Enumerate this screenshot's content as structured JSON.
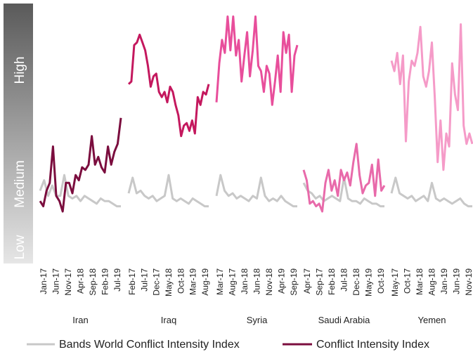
{
  "bands": [
    "High",
    "Medium",
    "Low"
  ],
  "chart_data": [
    {
      "type": "line",
      "title": "Iran",
      "ylim": [
        0,
        100
      ],
      "xticks": [
        "Jan-17",
        "Jun-17",
        "Nov-17",
        "Apr-18",
        "Sep-18",
        "Feb-19",
        "Jul-19"
      ],
      "series": [
        {
          "name": "Bands World Conflict Intensity Index",
          "color": "#c8c8c8",
          "values": [
            28,
            32,
            26,
            30,
            26,
            26,
            34,
            26,
            25,
            26,
            24,
            26,
            25,
            24,
            23,
            25,
            24,
            24,
            23,
            22,
            22
          ]
        },
        {
          "name": "Conflict Intensity Index",
          "color": "#7b0d3e",
          "values": [
            24,
            22,
            28,
            31,
            45,
            26,
            24,
            20,
            31,
            31,
            27,
            34,
            32,
            37,
            36,
            38,
            49,
            38,
            41,
            37,
            35,
            45,
            38,
            43,
            46,
            56
          ]
        }
      ]
    },
    {
      "type": "line",
      "title": "Iraq",
      "ylim": [
        0,
        100
      ],
      "xticks": [
        "Feb-17",
        "Jul-17",
        "Dec-17",
        "May-18",
        "Oct-18",
        "Mar-19",
        "Aug-19"
      ],
      "series": [
        {
          "name": "Bands World Conflict Intensity Index",
          "color": "#c8c8c8",
          "values": [
            27,
            33,
            27,
            28,
            26,
            25,
            26,
            24,
            25,
            26,
            34,
            25,
            24,
            25,
            24,
            23,
            25,
            24,
            23,
            22,
            22
          ]
        },
        {
          "name": "Conflict Intensity Index",
          "color": "#c4185e",
          "values": [
            69,
            70,
            84,
            85,
            88,
            85,
            82,
            76,
            68,
            72,
            73,
            66,
            64,
            66,
            62,
            68,
            66,
            61,
            57,
            49,
            53,
            54,
            51,
            55,
            50,
            64,
            61,
            66,
            65,
            69
          ]
        }
      ]
    },
    {
      "type": "line",
      "title": "Syria",
      "ylim": [
        0,
        100
      ],
      "xticks": [
        "Mar-17",
        "Aug-17",
        "Jan-18",
        "Jun-18",
        "Nov-18",
        "Apr-19",
        "Sep-19"
      ],
      "series": [
        {
          "name": "Bands World Conflict Intensity Index",
          "color": "#c8c8c8",
          "values": [
            26,
            34,
            28,
            26,
            27,
            25,
            26,
            25,
            24,
            26,
            25,
            33,
            26,
            24,
            25,
            24,
            26,
            24,
            23,
            22,
            22
          ]
        },
        {
          "name": "Conflict Intensity Index",
          "color": "#e84e9b",
          "values": [
            62,
            77,
            86,
            81,
            95,
            82,
            95,
            80,
            86,
            70,
            80,
            89,
            72,
            82,
            95,
            76,
            74,
            66,
            76,
            73,
            61,
            70,
            80,
            66,
            89,
            81,
            88,
            66,
            80,
            84
          ]
        }
      ]
    },
    {
      "type": "line",
      "title": "Saudi Arabia",
      "ylim": [
        0,
        100
      ],
      "xticks": [
        "Apr-17",
        "Sep-17",
        "Feb-18",
        "Jul-18",
        "Dec-18",
        "May-19",
        "Oct-19"
      ],
      "series": [
        {
          "name": "Bands World Conflict Intensity Index",
          "color": "#c8c8c8",
          "values": [
            31,
            28,
            27,
            25,
            26,
            24,
            25,
            26,
            25,
            24,
            33,
            25,
            24,
            24,
            23,
            25,
            24,
            23,
            23,
            22,
            22
          ]
        },
        {
          "name": "Conflict Intensity Index",
          "color": "#e86aaa",
          "values": [
            36,
            32,
            23,
            24,
            22,
            23,
            20,
            31,
            36,
            28,
            32,
            26,
            36,
            32,
            35,
            30,
            39,
            46,
            34,
            27,
            30,
            31,
            38,
            26,
            40,
            28,
            30
          ]
        }
      ]
    },
    {
      "type": "line",
      "title": "Yemen",
      "ylim": [
        0,
        100
      ],
      "xticks": [
        "May-17",
        "Oct-17",
        "Mar-18",
        "Aug-18",
        "Jan-19",
        "Jun-19",
        "Nov-19"
      ],
      "series": [
        {
          "name": "Bands World Conflict Intensity Index",
          "color": "#c8c8c8",
          "values": [
            27,
            33,
            27,
            26,
            25,
            26,
            24,
            25,
            26,
            24,
            31,
            25,
            24,
            25,
            24,
            23,
            24,
            25,
            23,
            22,
            22
          ]
        },
        {
          "name": "Conflict Intensity Index",
          "color": "#f59bc8",
          "values": [
            78,
            74,
            81,
            69,
            80,
            47,
            70,
            78,
            76,
            81,
            91,
            72,
            68,
            74,
            85,
            64,
            39,
            55,
            36,
            50,
            45,
            77,
            65,
            59,
            92,
            53,
            46,
            50,
            46
          ]
        }
      ]
    }
  ]
}
